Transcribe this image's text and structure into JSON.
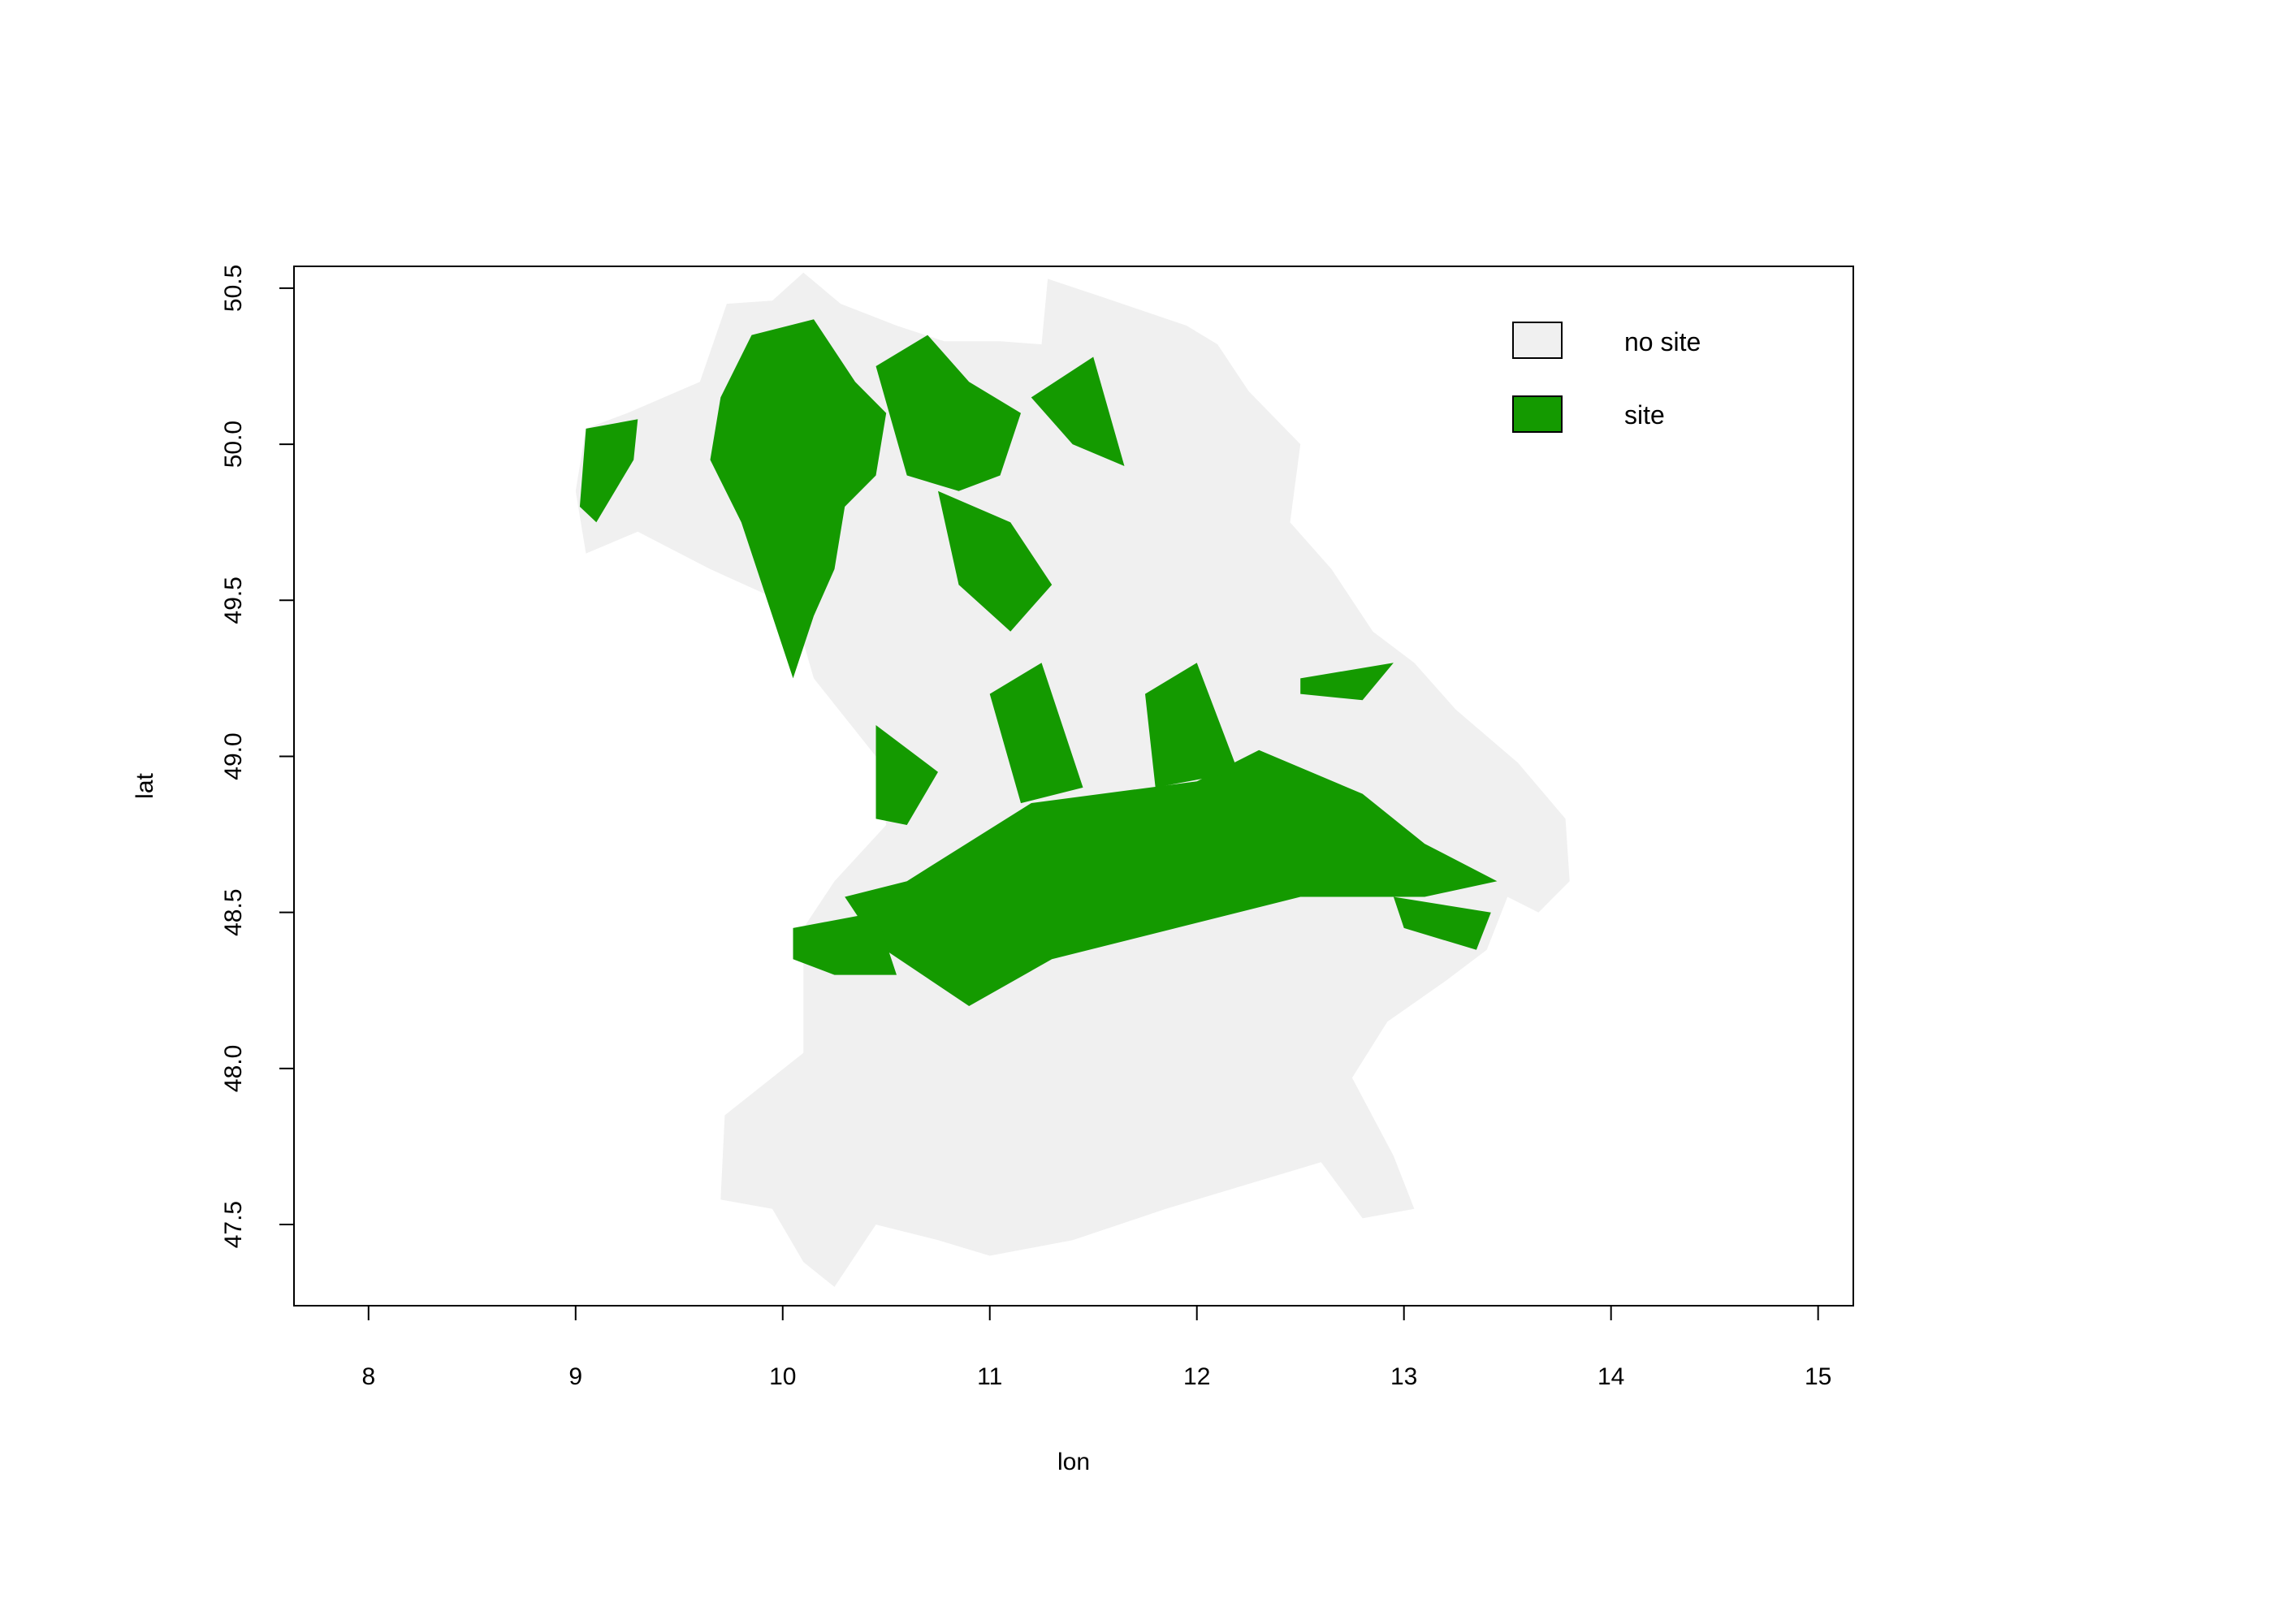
{
  "chart_data": {
    "type": "raster-map",
    "xlabel": "lon",
    "ylabel": "lat",
    "xlim": [
      7.64,
      15.17
    ],
    "ylim": [
      47.24,
      50.57
    ],
    "x_ticks": [
      8,
      9,
      10,
      11,
      12,
      13,
      14,
      15
    ],
    "y_ticks": [
      47.5,
      48.0,
      48.5,
      49.0,
      49.5,
      50.0,
      50.5
    ],
    "x_tick_labels": [
      "8",
      "9",
      "10",
      "11",
      "12",
      "13",
      "14",
      "15"
    ],
    "y_tick_labels": [
      "47.5",
      "48.0",
      "48.5",
      "49.0",
      "49.5",
      "50.0",
      "50.5"
    ],
    "grid": false,
    "legend_position": "top-right",
    "legend": [
      {
        "label": "no site",
        "color": "#f0f0f0"
      },
      {
        "label": "site",
        "color": "#149a00"
      }
    ],
    "region_outline": [
      [
        9.73,
        50.45
      ],
      [
        9.95,
        50.46
      ],
      [
        10.1,
        50.55
      ],
      [
        10.28,
        50.45
      ],
      [
        10.55,
        50.38
      ],
      [
        10.78,
        50.33
      ],
      [
        11.05,
        50.33
      ],
      [
        11.25,
        50.32
      ],
      [
        11.28,
        50.53
      ],
      [
        11.55,
        50.47
      ],
      [
        11.95,
        50.38
      ],
      [
        12.1,
        50.32
      ],
      [
        12.25,
        50.17
      ],
      [
        12.5,
        50.0
      ],
      [
        12.45,
        49.75
      ],
      [
        12.65,
        49.6
      ],
      [
        12.85,
        49.4
      ],
      [
        13.05,
        49.3
      ],
      [
        13.25,
        49.15
      ],
      [
        13.55,
        48.98
      ],
      [
        13.78,
        48.8
      ],
      [
        13.8,
        48.6
      ],
      [
        13.65,
        48.5
      ],
      [
        13.5,
        48.55
      ],
      [
        13.4,
        48.38
      ],
      [
        13.2,
        48.28
      ],
      [
        12.92,
        48.15
      ],
      [
        12.75,
        47.97
      ],
      [
        12.95,
        47.72
      ],
      [
        13.05,
        47.55
      ],
      [
        12.8,
        47.52
      ],
      [
        12.6,
        47.7
      ],
      [
        12.2,
        47.62
      ],
      [
        11.85,
        47.55
      ],
      [
        11.4,
        47.45
      ],
      [
        11.0,
        47.4
      ],
      [
        10.75,
        47.45
      ],
      [
        10.45,
        47.5
      ],
      [
        10.25,
        47.3
      ],
      [
        10.1,
        47.38
      ],
      [
        9.95,
        47.55
      ],
      [
        9.7,
        47.58
      ],
      [
        9.72,
        47.85
      ],
      [
        10.1,
        48.05
      ],
      [
        10.1,
        48.45
      ],
      [
        10.25,
        48.6
      ],
      [
        10.5,
        48.78
      ],
      [
        10.45,
        49.0
      ],
      [
        10.15,
        49.25
      ],
      [
        10.05,
        49.48
      ],
      [
        9.65,
        49.6
      ],
      [
        9.3,
        49.72
      ],
      [
        9.05,
        49.65
      ],
      [
        9.0,
        49.85
      ],
      [
        9.05,
        50.05
      ],
      [
        9.25,
        50.1
      ],
      [
        9.6,
        50.2
      ],
      [
        9.73,
        50.45
      ]
    ],
    "site_areas": [
      [
        [
          9.85,
          50.35
        ],
        [
          10.15,
          50.4
        ],
        [
          10.35,
          50.2
        ],
        [
          10.5,
          50.1
        ],
        [
          10.45,
          49.9
        ],
        [
          10.3,
          49.8
        ],
        [
          10.25,
          49.6
        ],
        [
          10.15,
          49.45
        ],
        [
          10.05,
          49.25
        ],
        [
          9.9,
          49.55
        ],
        [
          9.8,
          49.75
        ],
        [
          9.65,
          49.95
        ],
        [
          9.7,
          50.15
        ]
      ],
      [
        [
          9.05,
          50.05
        ],
        [
          9.3,
          50.08
        ],
        [
          9.28,
          49.95
        ],
        [
          9.1,
          49.75
        ],
        [
          9.02,
          49.8
        ]
      ],
      [
        [
          10.45,
          50.25
        ],
        [
          10.7,
          50.35
        ],
        [
          10.9,
          50.2
        ],
        [
          11.15,
          50.1
        ],
        [
          11.05,
          49.9
        ],
        [
          10.85,
          49.85
        ],
        [
          10.6,
          49.9
        ]
      ],
      [
        [
          11.2,
          50.15
        ],
        [
          11.5,
          50.28
        ],
        [
          11.65,
          49.93
        ],
        [
          11.4,
          50.0
        ]
      ],
      [
        [
          10.75,
          49.85
        ],
        [
          11.1,
          49.75
        ],
        [
          11.3,
          49.55
        ],
        [
          11.1,
          49.4
        ],
        [
          10.85,
          49.55
        ]
      ],
      [
        [
          10.45,
          49.1
        ],
        [
          10.75,
          48.95
        ],
        [
          10.6,
          48.78
        ],
        [
          10.45,
          48.8
        ]
      ],
      [
        [
          10.6,
          48.6
        ],
        [
          11.2,
          48.85
        ],
        [
          12.0,
          48.92
        ],
        [
          12.3,
          49.02
        ],
        [
          12.8,
          48.88
        ],
        [
          13.1,
          48.72
        ],
        [
          13.45,
          48.6
        ],
        [
          13.1,
          48.55
        ],
        [
          12.5,
          48.55
        ],
        [
          11.9,
          48.45
        ],
        [
          11.3,
          48.35
        ],
        [
          10.9,
          48.2
        ],
        [
          10.45,
          48.4
        ],
        [
          10.3,
          48.55
        ]
      ],
      [
        [
          10.05,
          48.45
        ],
        [
          10.45,
          48.5
        ],
        [
          10.55,
          48.3
        ],
        [
          10.25,
          48.3
        ],
        [
          10.05,
          48.35
        ]
      ],
      [
        [
          12.5,
          49.25
        ],
        [
          12.95,
          49.3
        ],
        [
          12.8,
          49.18
        ],
        [
          12.5,
          49.2
        ]
      ],
      [
        [
          11.0,
          49.2
        ],
        [
          11.25,
          49.3
        ],
        [
          11.45,
          48.9
        ],
        [
          11.15,
          48.85
        ]
      ],
      [
        [
          11.75,
          49.2
        ],
        [
          12.0,
          49.3
        ],
        [
          12.2,
          48.95
        ],
        [
          11.8,
          48.9
        ]
      ],
      [
        [
          12.95,
          48.55
        ],
        [
          13.42,
          48.5
        ],
        [
          13.35,
          48.38
        ],
        [
          13.0,
          48.45
        ]
      ]
    ]
  }
}
